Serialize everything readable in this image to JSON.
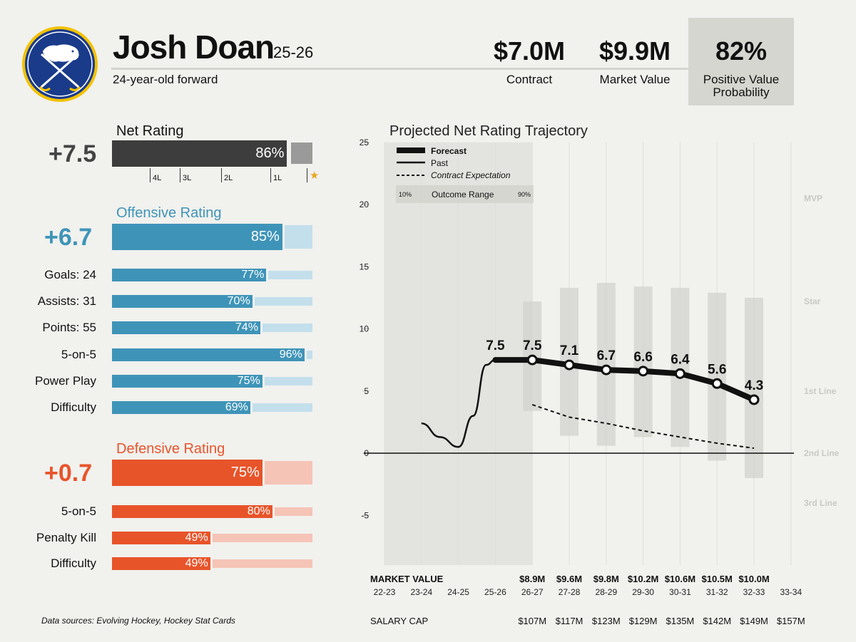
{
  "header": {
    "player_name": "Josh Doan",
    "season": "25-26",
    "subtitle": "24-year-old forward",
    "kpis": [
      {
        "value": "$7.0M",
        "label": "Contract"
      },
      {
        "value": "$9.9M",
        "label": "Market Value"
      },
      {
        "value": "82%",
        "label": "Positive Value Probability"
      }
    ],
    "colors": {
      "accent_box": "#d6d6d0"
    }
  },
  "net": {
    "title": "Net Rating",
    "value": "+7.5",
    "pct_label": "86%",
    "pct": 86,
    "color": "#3d3d3d",
    "scale_ticks": [
      "4L",
      "3L",
      "2L",
      "1L"
    ],
    "star_icon": "star-icon",
    "star_color": "#e8a623"
  },
  "offense": {
    "title": "Offensive Rating",
    "value": "+6.7",
    "pct_label": "85%",
    "pct": 85,
    "color": "#3e94b8",
    "light_color": "#c3dfec",
    "rows": [
      {
        "label": "Goals: 24",
        "pct_label": "77%",
        "pct": 77
      },
      {
        "label": "Assists: 31",
        "pct_label": "70%",
        "pct": 70
      },
      {
        "label": "Points: 55",
        "pct_label": "74%",
        "pct": 74
      },
      {
        "label": "5-on-5",
        "pct_label": "96%",
        "pct": 96
      },
      {
        "label": "Power Play",
        "pct_label": "75%",
        "pct": 75
      },
      {
        "label": "Difficulty",
        "pct_label": "69%",
        "pct": 69
      }
    ]
  },
  "defense": {
    "title": "Defensive Rating",
    "value": "+0.7",
    "pct_label": "75%",
    "pct": 75,
    "color": "#e8542a",
    "light_color": "#f5c4b6",
    "rows": [
      {
        "label": "5-on-5",
        "pct_label": "80%",
        "pct": 80
      },
      {
        "label": "Penalty Kill",
        "pct_label": "49%",
        "pct": 49
      },
      {
        "label": "Difficulty",
        "pct_label": "49%",
        "pct": 49
      }
    ]
  },
  "footnote": "Data sources: Evolving Hockey, Hockey Stat Cards",
  "chart_data": {
    "type": "line",
    "title": "Projected Net Rating Trajectory",
    "ylim": [
      -9,
      25
    ],
    "yticks": [
      25,
      20,
      15,
      10,
      5,
      0,
      -5
    ],
    "grid": true,
    "legend_position": "top-left",
    "legend": {
      "forecast": "Forecast",
      "past": "Past",
      "contract": "Contract Expectation",
      "range": "Outcome Range",
      "range_lo": "10%",
      "range_hi": "90%"
    },
    "seasons": [
      "22-23",
      "23-24",
      "24-25",
      "25-26",
      "26-27",
      "27-28",
      "28-29",
      "29-30",
      "30-31",
      "31-32",
      "32-33",
      "33-34"
    ],
    "past": {
      "x": [
        "23-24",
        "24-25",
        "25-26"
      ],
      "points": [
        [
          1,
          2.4
        ],
        [
          1.5,
          1.3
        ],
        [
          2,
          0.5
        ],
        [
          2.4,
          3.0
        ],
        [
          2.75,
          7.1
        ],
        [
          3,
          7.5
        ]
      ]
    },
    "forecast": {
      "x": [
        "25-26",
        "26-27",
        "27-28",
        "28-29",
        "29-30",
        "30-31",
        "31-32",
        "32-33"
      ],
      "values": [
        7.5,
        7.5,
        7.1,
        6.7,
        6.6,
        6.4,
        5.6,
        4.3
      ],
      "labels": [
        "7.5",
        "7.5",
        "7.1",
        "6.7",
        "6.6",
        "6.4",
        "5.6",
        "4.3"
      ]
    },
    "contract_expectation": {
      "x": [
        "26-27",
        "27-28",
        "28-29",
        "29-30",
        "30-31",
        "31-32",
        "32-33"
      ],
      "values": [
        3.9,
        2.9,
        2.4,
        1.8,
        1.3,
        0.8,
        0.4
      ]
    },
    "outcome_range": {
      "x": [
        "26-27",
        "27-28",
        "28-29",
        "29-30",
        "30-31",
        "31-32",
        "32-33"
      ],
      "low": [
        3.4,
        1.4,
        0.6,
        1.3,
        0.5,
        -0.6,
        -2.0
      ],
      "high": [
        12.2,
        13.3,
        13.7,
        13.4,
        13.3,
        12.9,
        12.5
      ]
    },
    "tiers": [
      {
        "label": "MVP",
        "value": 20.5
      },
      {
        "label": "Star",
        "value": 12.2
      },
      {
        "label": "1st Line",
        "value": 5.0
      },
      {
        "label": "2nd Line",
        "value": 0.0
      },
      {
        "label": "3rd Line",
        "value": -4.0
      }
    ],
    "market_value_title": "MARKET VALUE",
    "market_values": [
      "",
      "",
      "",
      "",
      "$8.9M",
      "$9.6M",
      "$9.8M",
      "$10.2M",
      "$10.6M",
      "$10.5M",
      "$10.0M",
      ""
    ],
    "salary_cap_title": "SALARY CAP",
    "salary_caps": [
      "",
      "",
      "",
      "",
      "$107M",
      "$117M",
      "$123M",
      "$129M",
      "$135M",
      "$142M",
      "$149M",
      "$157M"
    ]
  }
}
